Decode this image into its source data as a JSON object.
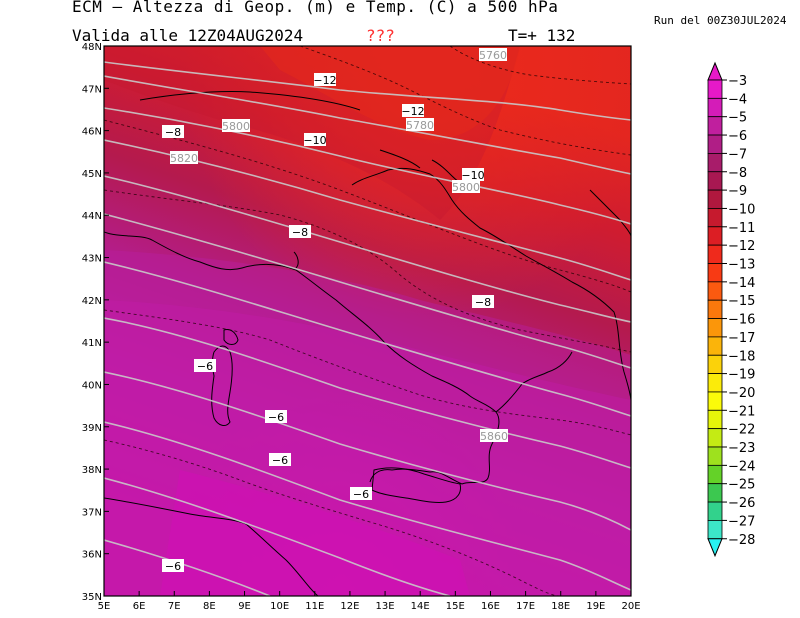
{
  "title": "ECM — Altezza di Geop. (m) e Temp. (C) a 500 hPa",
  "valid": "Valida alle 12Z04AUG2024",
  "flag": "???",
  "step": "T=+ 132",
  "run": "Run del 00Z30JUL2024",
  "lat_labels": [
    "48N",
    "47N",
    "46N",
    "45N",
    "44N",
    "43N",
    "42N",
    "41N",
    "40N",
    "39N",
    "38N",
    "37N",
    "36N",
    "35N"
  ],
  "lon_labels": [
    "5E",
    "6E",
    "7E",
    "8E",
    "9E",
    "10E",
    "11E",
    "12E",
    "13E",
    "14E",
    "15E",
    "16E",
    "17E",
    "18E",
    "19E",
    "20E"
  ],
  "temp_labels": [
    "-12",
    "-12",
    "-10",
    "-10",
    "-8",
    "-8",
    "-8",
    "-6",
    "-6",
    "-6",
    "-6",
    "-6"
  ],
  "geo_labels": [
    "5760",
    "5780",
    "5800",
    "5800",
    "5820",
    "5860"
  ],
  "colorbar": {
    "labels": [
      "-3",
      "-4",
      "-5",
      "-6",
      "-7",
      "-8",
      "-9",
      "-10",
      "-11",
      "-12",
      "-13",
      "-14",
      "-15",
      "-16",
      "-17",
      "-18",
      "-19",
      "-20",
      "-21",
      "-22",
      "-23",
      "-24",
      "-25",
      "-26",
      "-27",
      "-28"
    ],
    "colors": [
      "#e619c8",
      "#d41cb8",
      "#c01f9e",
      "#b01e86",
      "#a81c6a",
      "#a81852",
      "#b0183e",
      "#c61a2e",
      "#dc1e24",
      "#ef2a1c",
      "#f83a14",
      "#fb5a10",
      "#fb780c",
      "#fb960a",
      "#fbb40a",
      "#fbd20a",
      "#fbeb0a",
      "#fbfb0a",
      "#e6f50a",
      "#c4eb14",
      "#9ee11e",
      "#64d228",
      "#3cc850",
      "#32d28c",
      "#3ce6c8",
      "#28f0f0"
    ]
  }
}
